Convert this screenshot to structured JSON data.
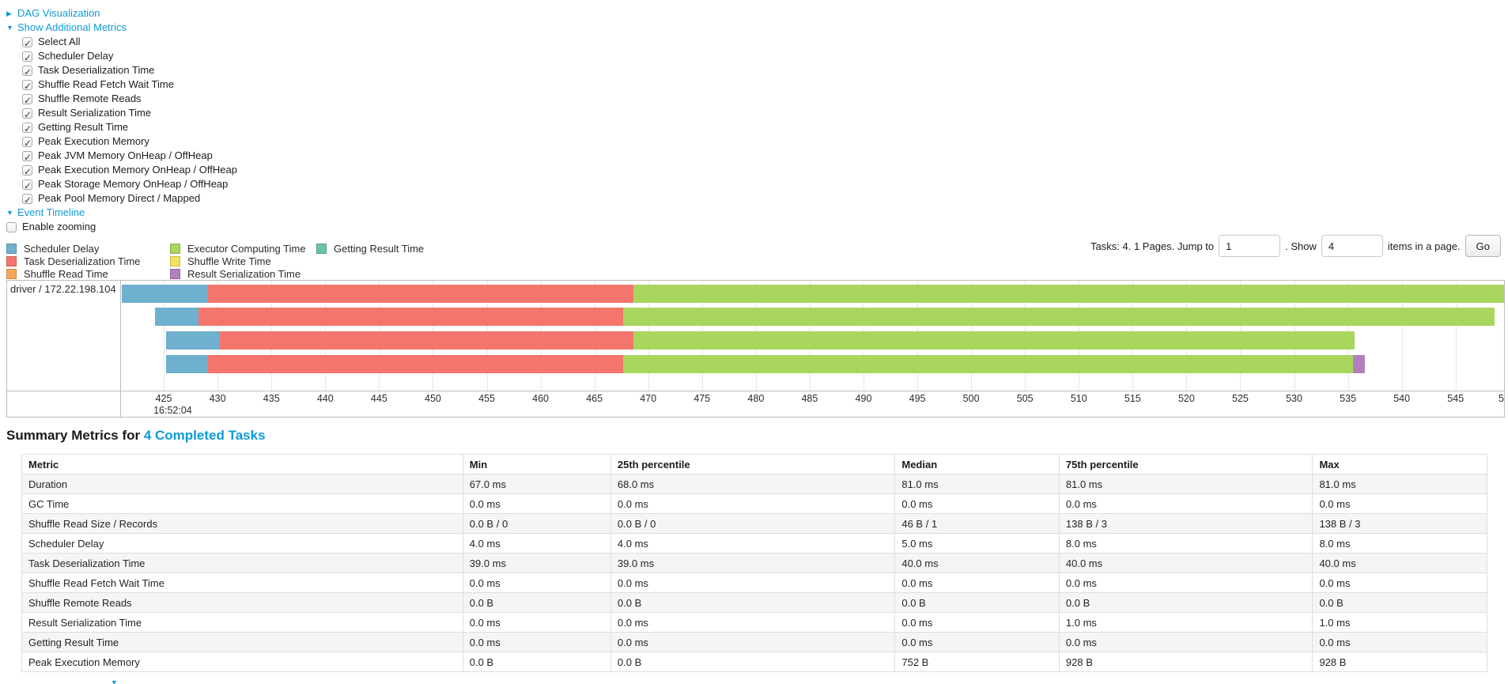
{
  "colors": {
    "link": "#0e9bd8",
    "scheduler_delay": "#6FB0CF",
    "task_deserialization": "#F4756C",
    "shuffle_read": "#F9A65B",
    "executor_computing": "#A9D65D",
    "shuffle_write": "#F2E35F",
    "result_serialization": "#B27FBE",
    "getting_result": "#69C3A8"
  },
  "controls": {
    "dag_label": "DAG Visualization",
    "metrics_label": "Show Additional Metrics",
    "metrics_items": [
      "Select All",
      "Scheduler Delay",
      "Task Deserialization Time",
      "Shuffle Read Fetch Wait Time",
      "Shuffle Remote Reads",
      "Result Serialization Time",
      "Getting Result Time",
      "Peak Execution Memory",
      "Peak JVM Memory OnHeap / OffHeap",
      "Peak Execution Memory OnHeap / OffHeap",
      "Peak Storage Memory OnHeap / OffHeap",
      "Peak Pool Memory Direct / Mapped"
    ],
    "event_timeline_label": "Event Timeline",
    "enable_zooming_label": "Enable zooming"
  },
  "legend": {
    "columns": [
      [
        {
          "label": "Scheduler Delay",
          "color": "#6FB0CF"
        },
        {
          "label": "Task Deserialization Time",
          "color": "#F4756C"
        },
        {
          "label": "Shuffle Read Time",
          "color": "#F9A65B"
        }
      ],
      [
        {
          "label": "Executor Computing Time",
          "color": "#A9D65D"
        },
        {
          "label": "Shuffle Write Time",
          "color": "#F2E35F"
        },
        {
          "label": "Result Serialization Time",
          "color": "#B27FBE"
        }
      ],
      [
        {
          "label": "Getting Result Time",
          "color": "#69C3A8"
        }
      ]
    ]
  },
  "pagination": {
    "tasks_text": "Tasks: 4. 1 Pages. Jump to",
    "jump_value": "1",
    "between_text": ". Show",
    "show_value": "4",
    "suffix_text": "items in a page.",
    "go_label": "Go"
  },
  "chart_data": {
    "type": "timeline",
    "group_label": "driver / 172.22.198.104",
    "time_axis_start_label": "16:52:04",
    "time_range": [
      421.1,
      549.5
    ],
    "ticks": [
      425,
      430,
      435,
      440,
      445,
      450,
      455,
      460,
      465,
      470,
      475,
      480,
      485,
      490,
      495,
      500,
      505,
      510,
      515,
      520,
      525,
      530,
      535,
      540,
      545
    ],
    "clipped_tick_label": "5",
    "row_tops": [
      5,
      34,
      64,
      94
    ],
    "tasks": [
      {
        "segments": [
          {
            "name": "Scheduler Delay",
            "color_key": "scheduler_delay",
            "start": 421.1,
            "end": 429.1
          },
          {
            "name": "Task Deserialization Time",
            "color_key": "task_deserialization",
            "start": 429.1,
            "end": 468.6
          },
          {
            "name": "Executor Computing Time",
            "color_key": "executor_computing",
            "start": 468.6,
            "end": 549.8
          }
        ]
      },
      {
        "segments": [
          {
            "name": "Scheduler Delay",
            "color_key": "scheduler_delay",
            "start": 424.2,
            "end": 428.2
          },
          {
            "name": "Task Deserialization Time",
            "color_key": "task_deserialization",
            "start": 428.2,
            "end": 467.7
          },
          {
            "name": "Executor Computing Time",
            "color_key": "executor_computing",
            "start": 467.7,
            "end": 548.6
          }
        ]
      },
      {
        "segments": [
          {
            "name": "Scheduler Delay",
            "color_key": "scheduler_delay",
            "start": 425.2,
            "end": 430.2
          },
          {
            "name": "Task Deserialization Time",
            "color_key": "task_deserialization",
            "start": 430.2,
            "end": 468.6
          },
          {
            "name": "Executor Computing Time",
            "color_key": "executor_computing",
            "start": 468.6,
            "end": 535.6
          }
        ]
      },
      {
        "segments": [
          {
            "name": "Scheduler Delay",
            "color_key": "scheduler_delay",
            "start": 425.2,
            "end": 429.1
          },
          {
            "name": "Task Deserialization Time",
            "color_key": "task_deserialization",
            "start": 429.1,
            "end": 467.7
          },
          {
            "name": "Executor Computing Time",
            "color_key": "executor_computing",
            "start": 467.7,
            "end": 535.5
          },
          {
            "name": "Result Serialization Time",
            "color_key": "result_serialization",
            "start": 535.5,
            "end": 536.6
          }
        ]
      }
    ]
  },
  "summary": {
    "title_prefix": "Summary Metrics for ",
    "title_link": "4 Completed Tasks",
    "table": {
      "headers": [
        "Metric",
        "Min",
        "25th percentile",
        "Median",
        "75th percentile",
        "Max"
      ],
      "col_widths_pct": [
        30.1,
        10.1,
        19.4,
        11.2,
        17.3,
        11.9
      ],
      "rows": [
        [
          "Duration",
          "67.0 ms",
          "68.0 ms",
          "81.0 ms",
          "81.0 ms",
          "81.0 ms"
        ],
        [
          "GC Time",
          "0.0 ms",
          "0.0 ms",
          "0.0 ms",
          "0.0 ms",
          "0.0 ms"
        ],
        [
          "Shuffle Read Size / Records",
          "0.0 B / 0",
          "0.0 B / 0",
          "46 B / 1",
          "138 B / 3",
          "138 B / 3"
        ],
        [
          "Scheduler Delay",
          "4.0 ms",
          "4.0 ms",
          "5.0 ms",
          "8.0 ms",
          "8.0 ms"
        ],
        [
          "Task Deserialization Time",
          "39.0 ms",
          "39.0 ms",
          "40.0 ms",
          "40.0 ms",
          "40.0 ms"
        ],
        [
          "Shuffle Read Fetch Wait Time",
          "0.0 ms",
          "0.0 ms",
          "0.0 ms",
          "0.0 ms",
          "0.0 ms"
        ],
        [
          "Shuffle Remote Reads",
          "0.0 B",
          "0.0 B",
          "0.0 B",
          "0.0 B",
          "0.0 B"
        ],
        [
          "Result Serialization Time",
          "0.0 ms",
          "0.0 ms",
          "0.0 ms",
          "1.0 ms",
          "1.0 ms"
        ],
        [
          "Getting Result Time",
          "0.0 ms",
          "0.0 ms",
          "0.0 ms",
          "0.0 ms",
          "0.0 ms"
        ],
        [
          "Peak Execution Memory",
          "0.0 B",
          "0.0 B",
          "752 B",
          "928 B",
          "928 B"
        ]
      ]
    }
  }
}
